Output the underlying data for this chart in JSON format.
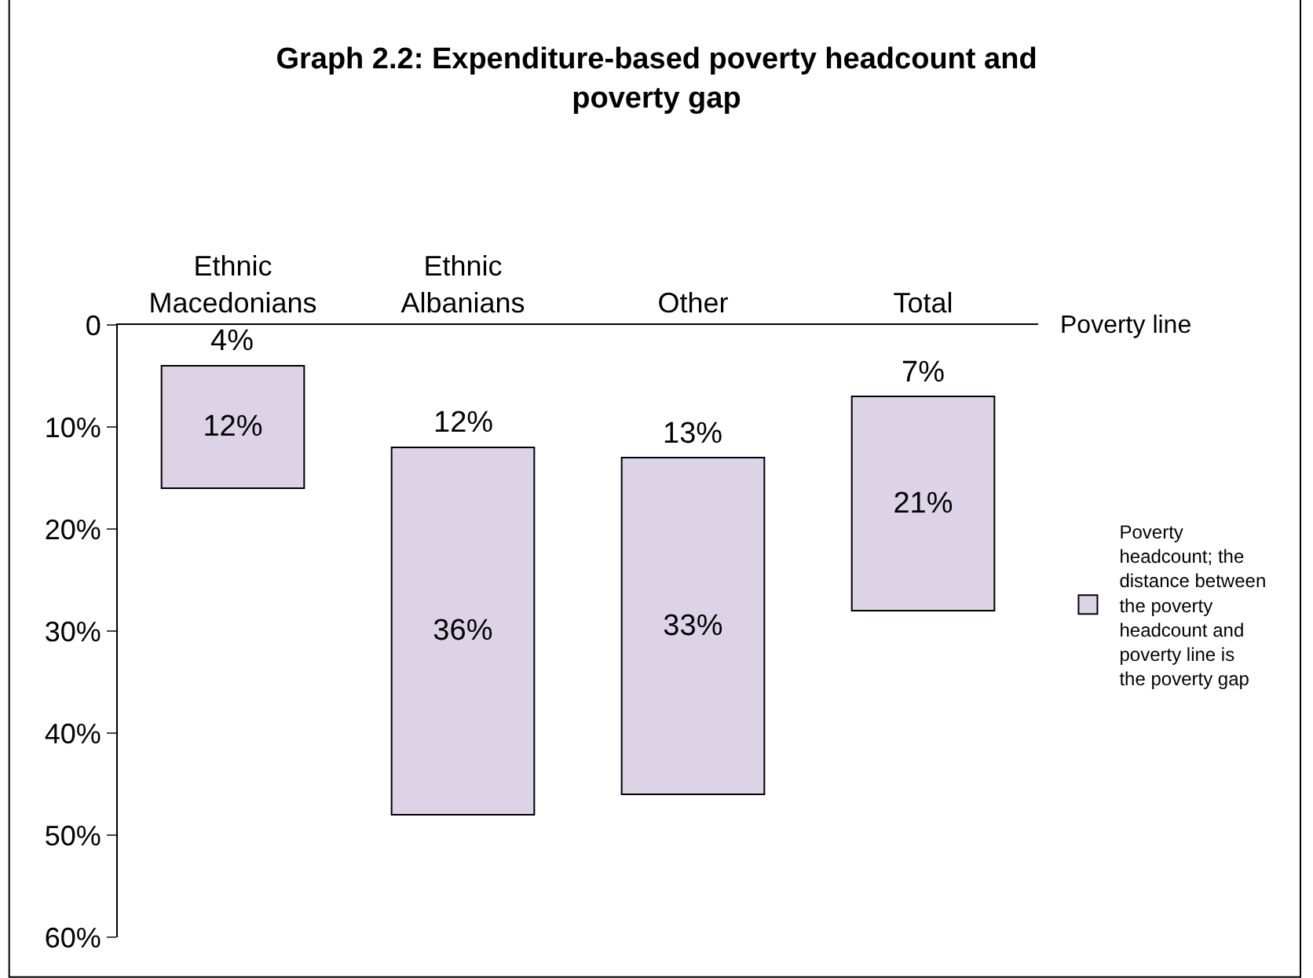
{
  "chart_data": {
    "type": "bar",
    "title": "Graph 2.2: Expenditure-based poverty headcount and poverty gap",
    "categories": [
      "Ethnic Macedonians",
      "Ethnic Albanians",
      "Other",
      "Total"
    ],
    "series": [
      {
        "name": "Poverty headcount; the distance between the poverty headcount and poverty line is the poverty gap",
        "color": "#dcd3e6",
        "values": [
          12,
          36,
          33,
          21
        ],
        "base": [
          4,
          12,
          13,
          7
        ],
        "value_labels": [
          "12%",
          "36%",
          "33%",
          "21%"
        ]
      }
    ],
    "annotations": [
      {
        "text": "4%",
        "x": "Ethnic Macedonians",
        "y": 4
      },
      {
        "text": "12%",
        "x": "Ethnic Albanians",
        "y": 12
      },
      {
        "text": "13%",
        "x": "Other",
        "y": 13
      },
      {
        "text": "7%",
        "x": "Total",
        "y": 7
      },
      "Poverty line"
    ],
    "ylim": [
      60,
      0
    ],
    "yticks": [
      {
        "value": 0,
        "label": "0"
      },
      {
        "value": 10,
        "label": "10%"
      },
      {
        "value": 20,
        "label": "20%"
      },
      {
        "value": 30,
        "label": "30%"
      },
      {
        "value": 40,
        "label": "40%"
      },
      {
        "value": 50,
        "label": "50%"
      },
      {
        "value": 60,
        "label": "60%"
      }
    ],
    "legend": "right"
  }
}
